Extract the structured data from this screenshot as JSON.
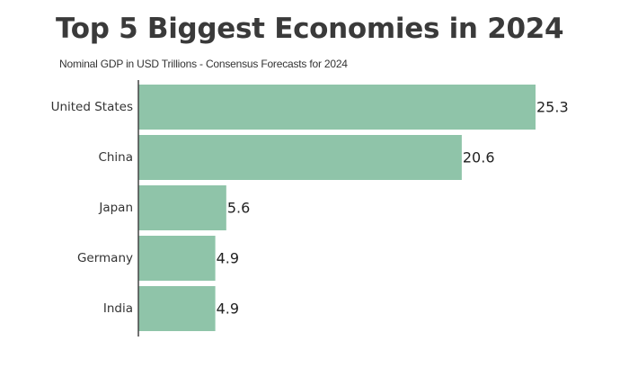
{
  "chart_data": {
    "type": "bar",
    "orientation": "horizontal",
    "title": "Top 5 Biggest Economies in 2024",
    "subtitle": "Nominal GDP in USD Trillions - Consensus Forecasts for 2024",
    "xlabel": "",
    "ylabel": "",
    "categories": [
      "United States",
      "China",
      "Japan",
      "Germany",
      "India"
    ],
    "values": [
      25.3,
      20.6,
      5.6,
      4.9,
      4.9
    ],
    "value_labels": [
      "25.3",
      "20.6",
      "5.6",
      "4.9",
      "4.9"
    ],
    "xlim": [
      0,
      25.3
    ],
    "grid": false,
    "legend": "none",
    "bar_color": "#8fc4a9",
    "text_color": "#333333",
    "axis_color": "#444444"
  }
}
